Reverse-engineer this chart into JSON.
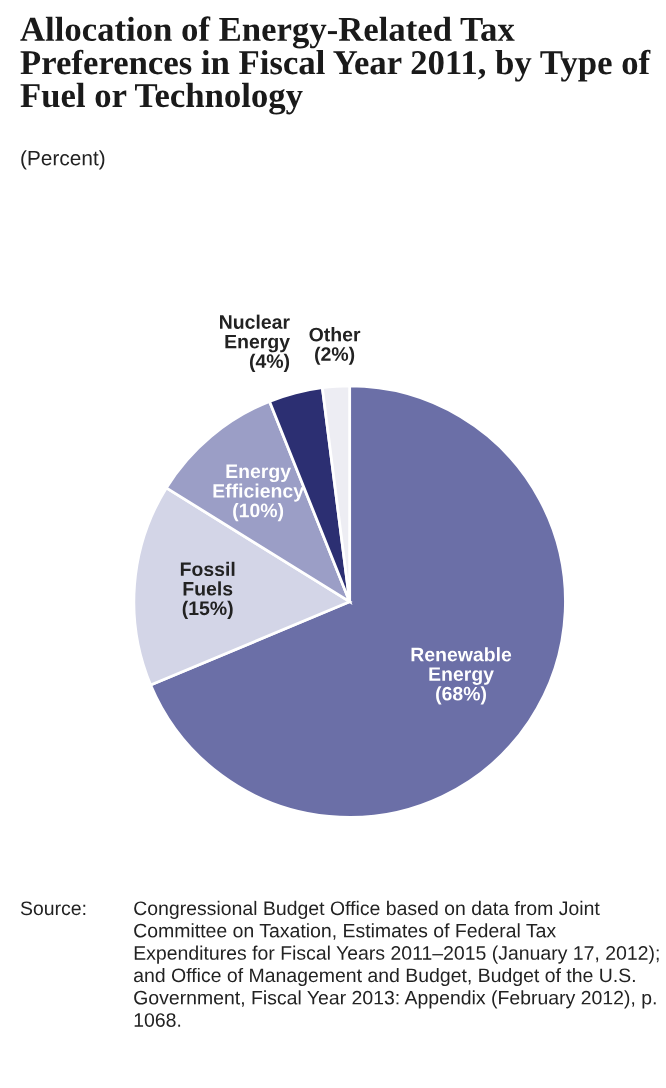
{
  "chart_data": {
    "type": "pie",
    "title": "Allocation of Energy-Related Tax Preferences in Fiscal Year 2011, by Type of Fuel or Technology",
    "subtitle": "(Percent)",
    "categories": [
      "Renewable\nEnergy",
      "Fossil\nFuels",
      "Energy\nEfficiency",
      "Nuclear\nEnergy",
      "Other"
    ],
    "values": [
      68,
      15,
      10,
      4,
      2
    ],
    "value_labels": [
      "(68%)",
      "(15%)",
      "(10%)",
      "(4%)",
      "(2%)"
    ],
    "colors": [
      "#6b6fa7",
      "#d3d5e7",
      "#9b9ec6",
      "#2c2f72",
      "#ededf3"
    ],
    "annotations": [
      "Source:\tCongressional Budget Office based on data from Joint Committee on Taxation, Estimates of Federal Tax Expenditures for Fiscal Years 2011–2015 (January 17, 2012); and Office of Management and Budget, Budget of the U.S. Government, Fiscal Year 2013: Appendix (February 2012), p. 1068."
    ],
    "legend": false
  }
}
